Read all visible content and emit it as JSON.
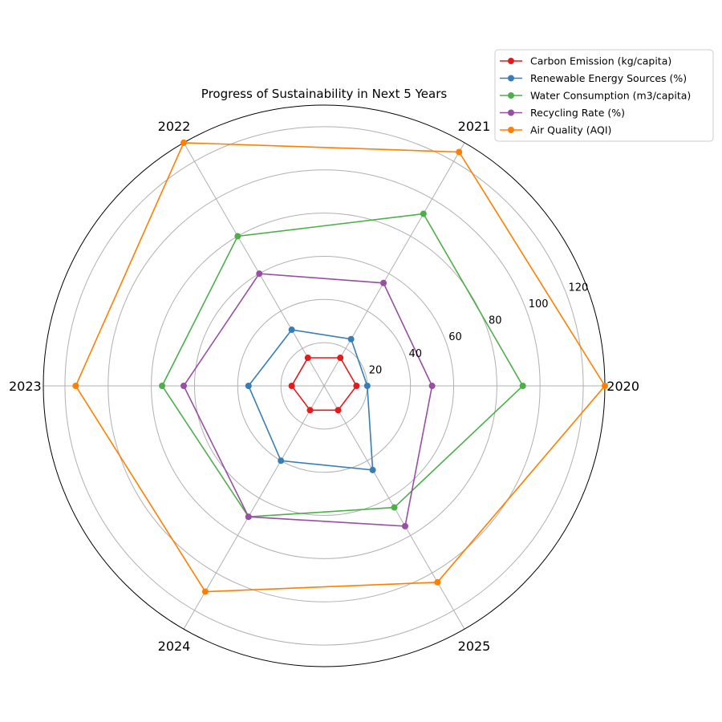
{
  "chart_data": {
    "type": "radar",
    "title": "Progress of Sustainability in Next 5 Years",
    "categories": [
      "2020",
      "2021",
      "2022",
      "2023",
      "2024",
      "2025"
    ],
    "r_ticks": [
      20,
      40,
      60,
      80,
      100,
      120
    ],
    "r_max": 130,
    "grid": true,
    "legend_position": "top-right",
    "series": [
      {
        "name": "Carbon Emission (kg/capita)",
        "color": "#e41a1c",
        "values": [
          15,
          15,
          15,
          15,
          13,
          13
        ]
      },
      {
        "name": "Renewable Energy Sources (%)",
        "color": "#377eb8",
        "values": [
          20,
          25,
          30,
          35,
          40,
          45
        ]
      },
      {
        "name": "Water Consumption (m3/capita)",
        "color": "#4daf4a",
        "values": [
          92,
          92,
          80,
          75,
          70,
          65
        ]
      },
      {
        "name": "Recycling Rate (%)",
        "color": "#984ea3",
        "values": [
          50,
          55,
          60,
          65,
          70,
          75
        ]
      },
      {
        "name": "Air Quality (AQI)",
        "color": "#ff7f00",
        "values": [
          130,
          125,
          130,
          115,
          110,
          105
        ]
      }
    ]
  }
}
